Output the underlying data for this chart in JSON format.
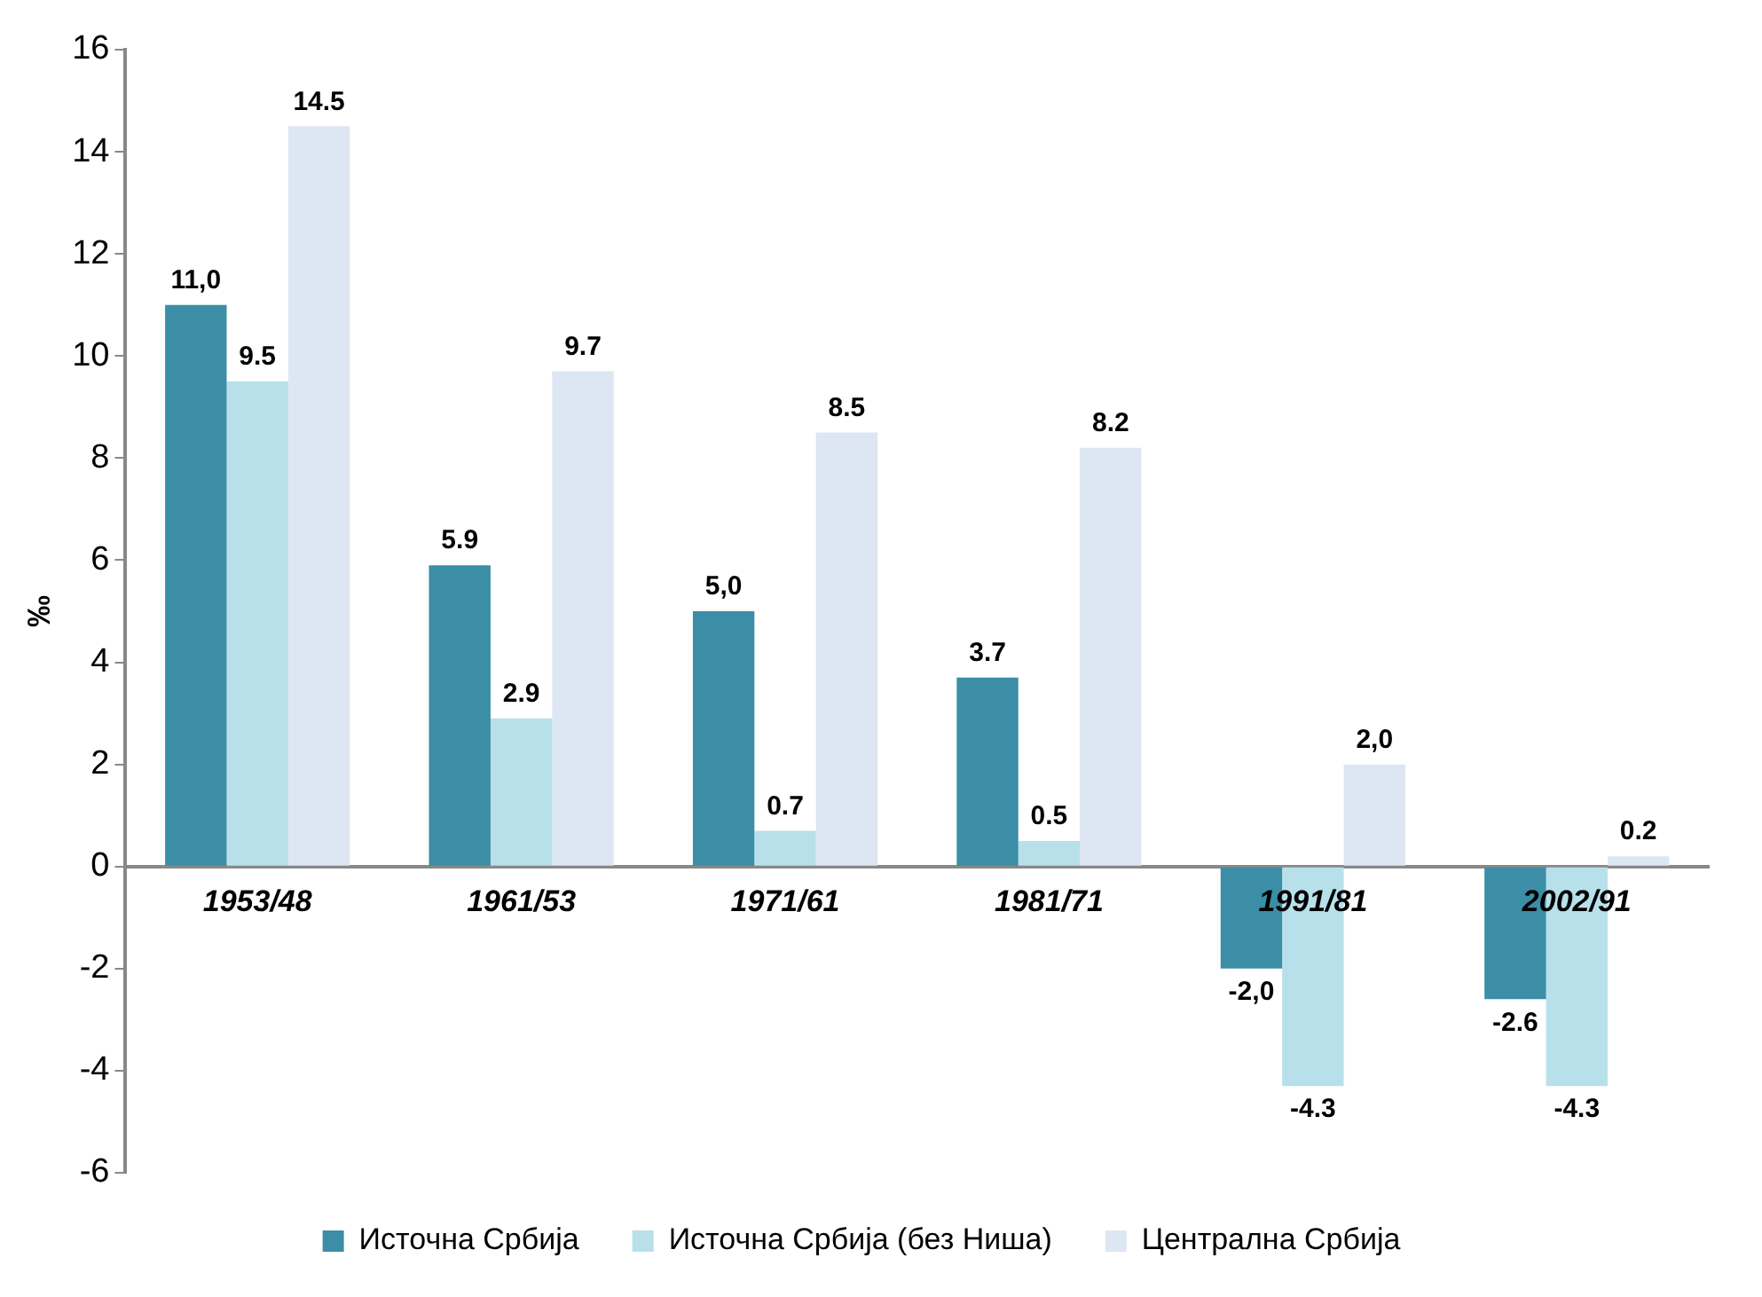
{
  "chart_data": {
    "type": "bar",
    "ylabel": "‰",
    "categories": [
      "1953/48",
      "1961/53",
      "1971/61",
      "1981/71",
      "1991/81",
      "2002/91"
    ],
    "series": [
      {
        "name": "Источна Србија",
        "color": "#3b8ea5",
        "values": [
          11.0,
          5.9,
          5.0,
          3.7,
          -2.0,
          -2.6
        ],
        "value_labels": [
          "11,0",
          "5.9",
          "5,0",
          "3.7",
          "-2,0",
          "-2.6"
        ]
      },
      {
        "name": "Источна Србија (без Ниша)",
        "color": "#b7e0ea",
        "values": [
          9.5,
          2.9,
          0.7,
          0.5,
          -4.3,
          -4.3
        ],
        "value_labels": [
          "9.5",
          "2.9",
          "0.7",
          "0.5",
          "-4.3",
          "-4.3"
        ]
      },
      {
        "name": "Централна Србија",
        "color": "#dde6f3",
        "values": [
          14.5,
          9.7,
          8.5,
          8.2,
          2.0,
          0.2
        ],
        "value_labels": [
          "14.5",
          "9.7",
          "8.5",
          "8.2",
          "2,0",
          "0.2"
        ]
      }
    ],
    "ylim": [
      -6,
      16
    ],
    "yticks": [
      -6,
      -4,
      -2,
      0,
      2,
      4,
      6,
      8,
      10,
      12,
      14,
      16
    ],
    "grid": false,
    "legend": "bottom"
  }
}
